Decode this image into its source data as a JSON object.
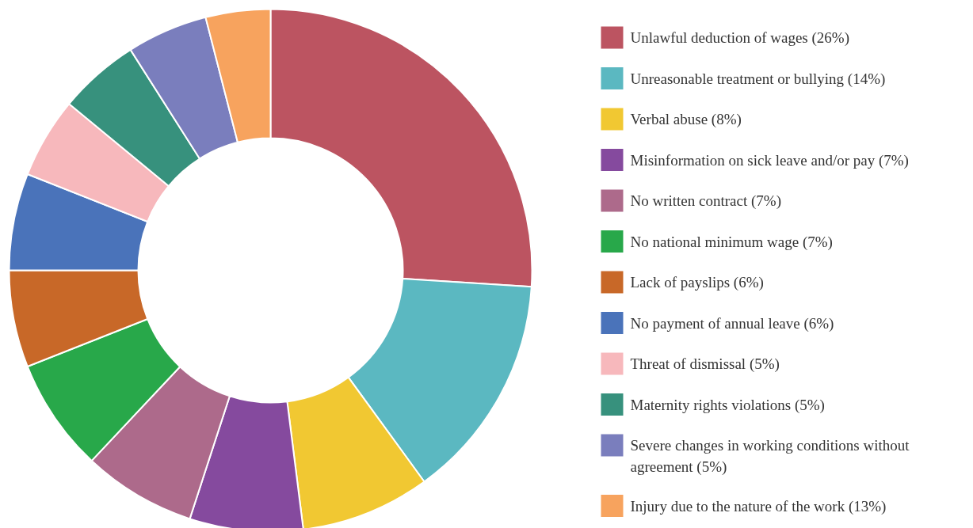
{
  "chart_data": {
    "type": "donut",
    "legend": "right",
    "categories": [
      "Unlawful deduction of wages (26%)",
      "Unreasonable treatment or bullying (14%)",
      "Verbal abuse (8%)",
      "Misinformation on sick leave and/or pay (7%)",
      "No written contract (7%)",
      "No national minimum wage (7%)",
      "Lack of payslips (6%)",
      "No payment of annual leave (6%)",
      "Threat of dismissal (5%)",
      "Maternity rights violations (5%)",
      "Severe changes in working conditions without agreement (5%)",
      "Injury due to the nature of the work (13%)"
    ],
    "values": [
      26,
      14,
      8,
      7,
      7,
      7,
      6,
      6,
      5,
      5,
      5,
      4
    ],
    "colors": [
      "#bc5461",
      "#5bb8c1",
      "#f1c832",
      "#854a9e",
      "#ad6a8b",
      "#28a84a",
      "#c86828",
      "#4a73ba",
      "#f7b8bc",
      "#37917d",
      "#7a7ebd",
      "#f7a35e"
    ]
  }
}
